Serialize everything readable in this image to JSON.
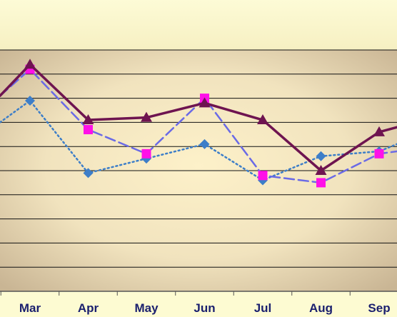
{
  "chart_data": {
    "type": "line",
    "categories": [
      "Mar",
      "Apr",
      "May",
      "Jun",
      "Jul",
      "Aug",
      "Sep"
    ],
    "ylim": [
      0,
      100
    ],
    "grid": true,
    "legend": "none",
    "series": [
      {
        "style": "solid",
        "marker": "triangle",
        "color": "#6e1450",
        "values": [
          94,
          71,
          72,
          78,
          71,
          50,
          66
        ],
        "left_edge": 81,
        "right_edge": 68
      },
      {
        "style": "dashed",
        "marker": "square",
        "color": "#6a6ae6",
        "values": [
          92,
          67,
          57,
          80,
          48,
          45,
          57
        ],
        "left_edge": 81,
        "right_edge": 58
      },
      {
        "style": "dotted",
        "marker": "diamond",
        "color": "#3d7ec8",
        "values": [
          79,
          49,
          55,
          61,
          46,
          56,
          58
        ],
        "left_edge": 70,
        "right_edge": 61
      }
    ]
  }
}
